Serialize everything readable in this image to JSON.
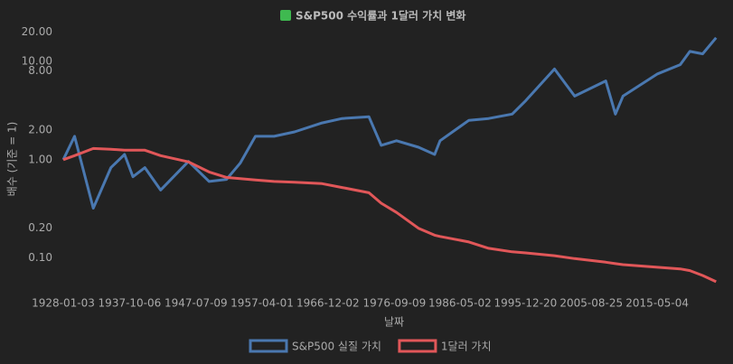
{
  "chart_data": {
    "type": "line",
    "title": "S&P500 수익률과 1달러 가치 변화",
    "x_label": "날짜",
    "y_label": "배수 (기준 = 1)",
    "x": [
      "1928-01-03",
      "1929-09-03",
      "1932-06-01",
      "1935-01-03",
      "1937-01-04",
      "1938-03-31",
      "1940-01-03",
      "1942-04-28",
      "1946-05-29",
      "1949-06-13",
      "1952-01-03",
      "1954-01-04",
      "1956-04-06",
      "1959-01-05",
      "1962-01-03",
      "1966-01-18",
      "1969-01-03",
      "1972-12-11",
      "1974-10-03",
      "1977-01-03",
      "1980-03-27",
      "1982-08-12",
      "1983-06-01",
      "1987-08-25",
      "1990-07-16",
      "1994-01-03",
      "1996-01-03",
      "2000-03-24",
      "2003-03-11",
      "2007-10-09",
      "2009-03-09",
      "2010-04-23",
      "2015-05-21",
      "2018-09-20",
      "2020-02-19",
      "2022-01-03",
      "2023-12-29"
    ],
    "series": [
      {
        "name": "S&P500 실질 가치",
        "color": "#4a78b0",
        "values": [
          1.0,
          1.73,
          0.32,
          0.83,
          1.13,
          0.67,
          0.83,
          0.49,
          0.96,
          0.6,
          0.63,
          0.92,
          1.73,
          1.73,
          1.92,
          2.37,
          2.63,
          2.74,
          1.4,
          1.56,
          1.34,
          1.13,
          1.56,
          2.52,
          2.63,
          2.92,
          4.0,
          8.4,
          4.45,
          6.36,
          2.92,
          4.45,
          7.5,
          9.3,
          12.7,
          12.0,
          17.5
        ]
      },
      {
        "name": "1달러 가치",
        "color": "#e15759",
        "values": [
          1.0,
          1.1,
          1.3,
          1.28,
          1.25,
          1.25,
          1.25,
          1.1,
          0.95,
          0.75,
          0.66,
          0.64,
          0.62,
          0.6,
          0.59,
          0.57,
          0.52,
          0.46,
          0.36,
          0.29,
          0.2,
          0.17,
          0.165,
          0.145,
          0.125,
          0.115,
          0.112,
          0.105,
          0.098,
          0.09,
          0.087,
          0.085,
          0.08,
          0.077,
          0.074,
          0.066,
          0.057
        ]
      }
    ],
    "xlim": [
      "1928-01-03",
      "2025-06-01"
    ],
    "xticks": [
      "1928-01-03",
      "1937-10-06",
      "1947-07-09",
      "1957-04-01",
      "1966-12-02",
      "1976-09-09",
      "1986-05-02",
      "1995-12-20",
      "2005-08-25",
      "2015-05-04"
    ],
    "ylim": [
      0.046,
      25
    ],
    "log_y": true,
    "yticks": [
      {
        "value": 0.1,
        "label": "0.10"
      },
      {
        "value": 0.2,
        "label": "0.20"
      },
      {
        "value": 1,
        "label": "1.00"
      },
      {
        "value": 2,
        "label": "2.00"
      },
      {
        "value": 8,
        "label": "8.00"
      },
      {
        "value": 10,
        "label": "10.00"
      },
      {
        "value": 20,
        "label": "20.00"
      }
    ],
    "grid": false,
    "legend": "bottom"
  }
}
